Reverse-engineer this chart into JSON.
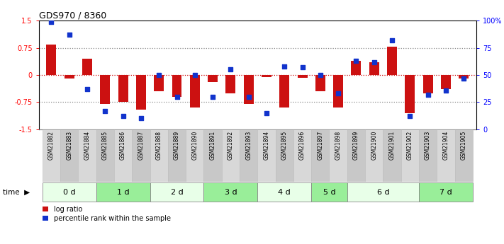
{
  "title": "GDS970 / 8360",
  "samples": [
    "GSM21882",
    "GSM21883",
    "GSM21884",
    "GSM21885",
    "GSM21886",
    "GSM21887",
    "GSM21888",
    "GSM21889",
    "GSM21890",
    "GSM21891",
    "GSM21892",
    "GSM21893",
    "GSM21894",
    "GSM21895",
    "GSM21896",
    "GSM21897",
    "GSM21898",
    "GSM21899",
    "GSM21900",
    "GSM21901",
    "GSM21902",
    "GSM21903",
    "GSM21904",
    "GSM21905"
  ],
  "log_ratio": [
    0.85,
    -0.1,
    0.45,
    -0.8,
    -0.75,
    -0.95,
    -0.45,
    -0.6,
    -0.9,
    -0.2,
    -0.5,
    -0.8,
    -0.05,
    -0.9,
    -0.08,
    -0.45,
    -0.9,
    0.4,
    0.35,
    0.78,
    -1.05,
    -0.5,
    -0.38,
    -0.1
  ],
  "percentile_rank": [
    99,
    87,
    37,
    17,
    12,
    10,
    50,
    30,
    50,
    30,
    55,
    30,
    15,
    58,
    57,
    50,
    33,
    63,
    62,
    82,
    12,
    32,
    36,
    47
  ],
  "time_groups": [
    {
      "label": "0 d",
      "start": 0,
      "end": 3
    },
    {
      "label": "1 d",
      "start": 3,
      "end": 6
    },
    {
      "label": "2 d",
      "start": 6,
      "end": 9
    },
    {
      "label": "3 d",
      "start": 9,
      "end": 12
    },
    {
      "label": "4 d",
      "start": 12,
      "end": 15
    },
    {
      "label": "5 d",
      "start": 15,
      "end": 17
    },
    {
      "label": "6 d",
      "start": 17,
      "end": 21
    },
    {
      "label": "7 d",
      "start": 21,
      "end": 24
    }
  ],
  "group_colors": [
    "#e8ffe8",
    "#99ee99"
  ],
  "bar_color": "#cc1111",
  "dot_color": "#1133cc",
  "ylim": [
    -1.5,
    1.5
  ],
  "left_yticks": [
    -1.5,
    -0.75,
    0.0,
    0.75,
    1.5
  ],
  "left_yticklabels": [
    "-1.5",
    "-0.75",
    "0",
    "0.75",
    "1.5"
  ],
  "right_yticks_pct": [
    0,
    25,
    50,
    75,
    100
  ],
  "right_yticklabels": [
    "0",
    "25",
    "50",
    "75",
    "100%"
  ],
  "hline_zero_color": "#cc0000",
  "hline_grid_color": "#888888",
  "legend_log_ratio": "log ratio",
  "legend_percentile": "percentile rank within the sample",
  "time_label": "time"
}
